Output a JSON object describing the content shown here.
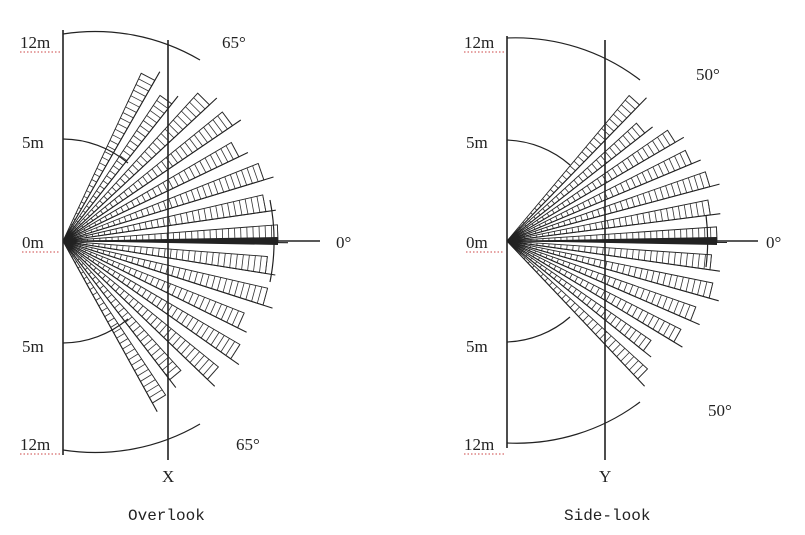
{
  "panels": [
    {
      "id": "overlook",
      "caption": "Overlook",
      "axis_label": "X",
      "zero_label": "0°",
      "labels": {
        "top_far": "12m",
        "top_near": "5m",
        "center": "0m",
        "bottom_near": "5m",
        "bottom_far": "12m",
        "angle_top": "65°",
        "angle_bottom": "65°"
      },
      "detection_angle_deg": 65,
      "ranges_m": [
        5,
        12
      ]
    },
    {
      "id": "side-look",
      "caption": "Side-look",
      "axis_label": "Y",
      "zero_label": "0°",
      "labels": {
        "top_far": "12m",
        "top_near": "5m",
        "center": "0m",
        "bottom_near": "5m",
        "bottom_far": "12m",
        "angle_top": "50°",
        "angle_bottom": "50°"
      },
      "detection_angle_deg": 50,
      "ranges_m": [
        5,
        12
      ]
    }
  ]
}
